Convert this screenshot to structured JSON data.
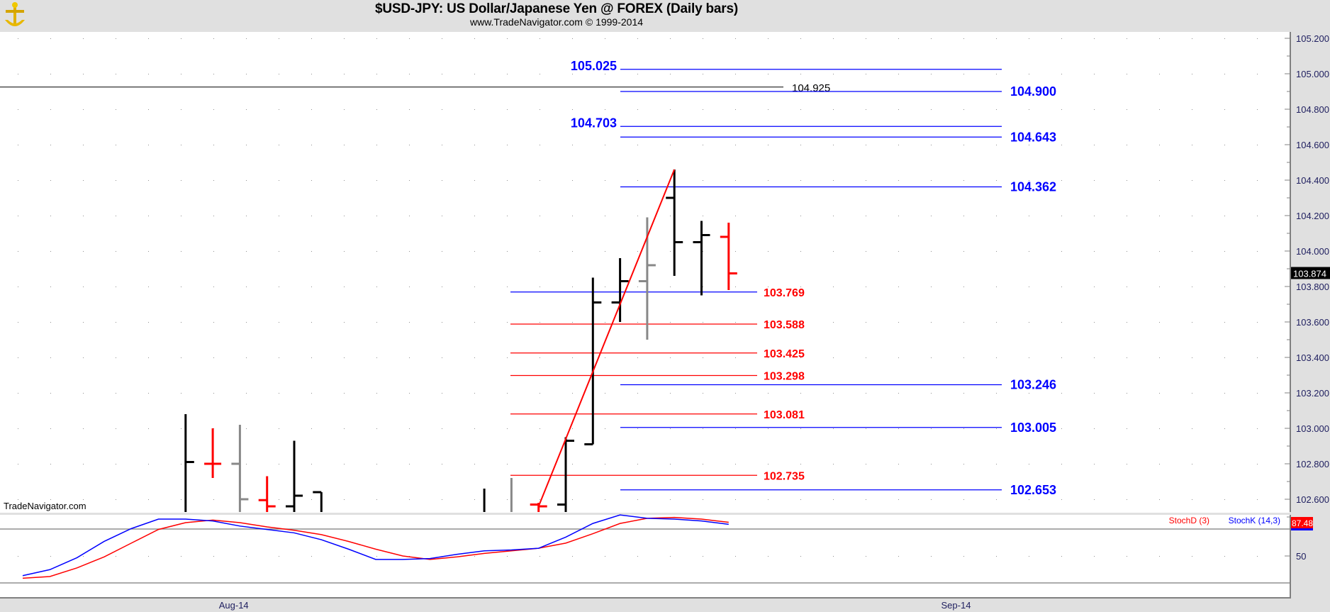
{
  "header": {
    "title": "$USD-JPY:  US Dollar/Japanese Yen @ FOREX  (Daily bars)",
    "subtitle": "www.TradeNavigator.com © 1999-2014",
    "logo_icon": "anchor-logo-icon"
  },
  "watermark": "TradeNavigator.com",
  "colors": {
    "up_bar": "#000000",
    "down_bar": "#ff0000",
    "neutral_bar": "#888888",
    "fib_blue": "#0000ff",
    "fib_red": "#ff0000",
    "stoch_k": "#0000ff",
    "stoch_d": "#ff0000",
    "axis_text": "#202060"
  },
  "chart_data": [
    {
      "type": "ohlc",
      "title": "$USD-JPY:  US Dollar/Japanese Yen @ FOREX  (Daily bars)",
      "ylim": [
        102.55,
        105.22
      ],
      "y_ticks": [
        "105.200",
        "105.000",
        "104.800",
        "104.600",
        "104.400",
        "104.200",
        "104.000",
        "103.800",
        "103.600",
        "103.400",
        "103.200",
        "103.000",
        "102.800",
        "102.600"
      ],
      "x_ticks": [
        {
          "label": "Aug-14",
          "at": 7.8
        },
        {
          "label": "Sep-14",
          "at": 34.4
        }
      ],
      "grid": "dotted",
      "last_price": "103.874",
      "bars": [
        {
          "i": 6,
          "c": "up",
          "h": 103.08,
          "l": 102.4,
          "o": null,
          "cl": 102.81
        },
        {
          "i": 7,
          "c": "down",
          "h": 103.0,
          "l": 102.72,
          "o": 102.8,
          "cl": 102.8
        },
        {
          "i": 8,
          "c": "neutral",
          "h": 103.02,
          "l": 102.4,
          "o": 102.8,
          "cl": 102.6
        },
        {
          "i": 9,
          "c": "down",
          "h": 102.73,
          "l": 102.4,
          "o": 102.595,
          "cl": 102.56
        },
        {
          "i": 10,
          "c": "up",
          "h": 102.93,
          "l": 102.4,
          "o": 102.56,
          "cl": 102.62
        },
        {
          "i": 11,
          "c": "up",
          "h": 102.64,
          "l": 102.4,
          "o": 102.64,
          "cl": null
        },
        {
          "i": 17,
          "c": "up",
          "h": 102.66,
          "l": 102.4,
          "o": null,
          "cl": null
        },
        {
          "i": 18,
          "c": "neutral",
          "h": 102.72,
          "l": 102.4,
          "o": null,
          "cl": null
        },
        {
          "i": 19,
          "c": "down",
          "h": 102.58,
          "l": 102.4,
          "o": 102.57,
          "cl": 102.56
        },
        {
          "i": 20,
          "c": "up",
          "h": 102.95,
          "l": 102.4,
          "o": 102.57,
          "cl": 102.93
        },
        {
          "i": 21,
          "c": "up",
          "h": 103.85,
          "l": 102.91,
          "o": 102.91,
          "cl": 103.71
        },
        {
          "i": 22,
          "c": "up",
          "h": 103.96,
          "l": 103.6,
          "o": 103.71,
          "cl": 103.83
        },
        {
          "i": 23,
          "c": "neutral",
          "h": 104.19,
          "l": 103.5,
          "o": 103.83,
          "cl": 103.92
        },
        {
          "i": 24,
          "c": "up",
          "h": 104.46,
          "l": 103.86,
          "o": 104.3,
          "cl": 104.05
        },
        {
          "i": 25,
          "c": "up",
          "h": 104.17,
          "l": 103.75,
          "o": 104.05,
          "cl": 104.09
        },
        {
          "i": 26,
          "c": "down",
          "h": 104.16,
          "l": 103.78,
          "o": 104.08,
          "cl": 103.874
        }
      ],
      "trendline": {
        "from": {
          "i": 19,
          "p": 102.56
        },
        "to": {
          "i": 24,
          "p": 104.46
        },
        "color": "#ff0000"
      },
      "hline": {
        "value": 104.925,
        "label": "104.925",
        "color": "#000000"
      },
      "levels_blue": [
        {
          "value": 105.025,
          "label": "105.025",
          "side": "left"
        },
        {
          "value": 104.9,
          "label": "104.900",
          "side": "right"
        },
        {
          "value": 104.703,
          "label": "104.703",
          "side": "left"
        },
        {
          "value": 104.643,
          "label": "104.643",
          "side": "right"
        },
        {
          "value": 104.362,
          "label": "104.362",
          "side": "right"
        },
        {
          "value": 103.246,
          "label": "103.246",
          "side": "right"
        },
        {
          "value": 103.005,
          "label": "103.005",
          "side": "right"
        },
        {
          "value": 102.653,
          "label": "102.653",
          "side": "right"
        }
      ],
      "levels_red": [
        {
          "value": 103.769,
          "label": "103.769",
          "line": "#0000ff"
        },
        {
          "value": 103.588,
          "label": "103.588",
          "line": "#ff0000"
        },
        {
          "value": 103.425,
          "label": "103.425",
          "line": "#ff0000"
        },
        {
          "value": 103.298,
          "label": "103.298",
          "line": "#ff0000"
        },
        {
          "value": 103.081,
          "label": "103.081",
          "line": "#ff0000"
        },
        {
          "value": 102.735,
          "label": "102.735",
          "line": "#ff0000"
        }
      ]
    },
    {
      "type": "line",
      "ylim": [
        5,
        100
      ],
      "y_ticks": [
        "50"
      ],
      "ref_lines": [
        80,
        20
      ],
      "last_value": "87.48",
      "x": [
        0,
        1,
        2,
        3,
        4,
        5,
        6,
        7,
        8,
        9,
        10,
        11,
        12,
        13,
        14,
        15,
        16,
        17,
        18,
        19,
        20,
        21,
        22,
        23,
        24,
        25,
        26
      ],
      "series": [
        {
          "name": "StochD (3)",
          "color": "#ff0000",
          "values": [
            25.2,
            27.1,
            36.7,
            49,
            64.3,
            79.5,
            87.1,
            90,
            87.1,
            82.4,
            78.6,
            73.8,
            66.2,
            57.6,
            50,
            46.2,
            49,
            52.9,
            55.7,
            58.6,
            64.3,
            74.8,
            86.2,
            91.9,
            92.9,
            91,
            87.5
          ]
        },
        {
          "name": "StochK (14,3)",
          "color": "#0000ff",
          "values": [
            28.1,
            34.8,
            48.1,
            66.2,
            80.5,
            91,
            91,
            89,
            83.3,
            79.5,
            75.7,
            68.1,
            57.6,
            46.2,
            46.2,
            47.1,
            51.9,
            55.7,
            56.7,
            58.6,
            71,
            86.2,
            95.7,
            91.9,
            91,
            89,
            85.2
          ]
        }
      ]
    }
  ]
}
